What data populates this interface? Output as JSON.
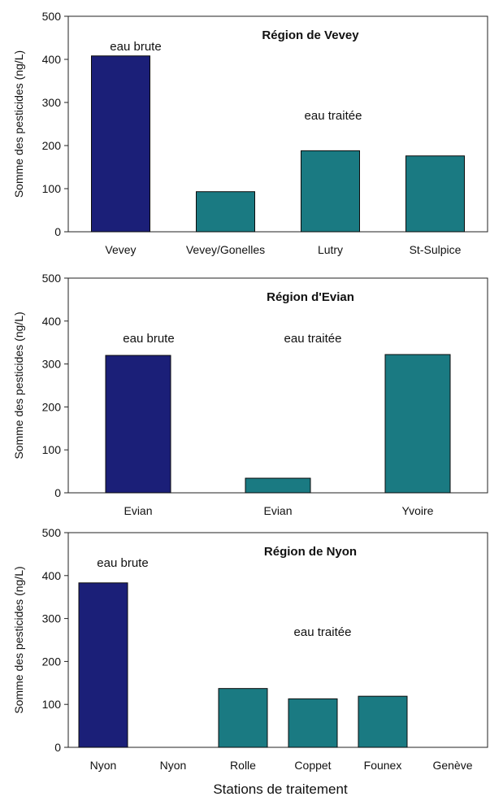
{
  "colors": {
    "raw_water": "#1b1f78",
    "treated_water": "#1a7a82",
    "axis": "#222222"
  },
  "xlabel": "Stations de traitement",
  "chart_data": [
    {
      "type": "bar",
      "title": "Région de Vevey",
      "ylabel": "Somme des pesticides (ng/L)",
      "ylim": [
        0,
        500
      ],
      "yticks": [
        0,
        100,
        200,
        300,
        400,
        500
      ],
      "categories": [
        "Vevey",
        "Vevey/Gonelles",
        "Lutry",
        "St-Sulpice"
      ],
      "values": [
        408,
        93,
        188,
        176
      ],
      "water_type": [
        "eau brute",
        "eau traitée",
        "eau traitée",
        "eau traitée"
      ],
      "annotations": [
        "eau brute",
        "eau traitée"
      ]
    },
    {
      "type": "bar",
      "title": "Région d'Evian",
      "ylabel": "Somme des pesticides (ng/L)",
      "ylim": [
        0,
        500
      ],
      "yticks": [
        0,
        100,
        200,
        300,
        400,
        500
      ],
      "categories": [
        "Evian",
        "Evian",
        "Yvoire"
      ],
      "values": [
        320,
        34,
        322
      ],
      "water_type": [
        "eau brute",
        "eau traitée",
        "eau traitée"
      ],
      "annotations": [
        "eau brute",
        "eau traitée"
      ]
    },
    {
      "type": "bar",
      "title": "Région de Nyon",
      "ylabel": "Somme des pesticides (ng/L)",
      "ylim": [
        0,
        500
      ],
      "yticks": [
        0,
        100,
        200,
        300,
        400,
        500
      ],
      "categories": [
        "Nyon",
        "Nyon",
        "Rolle",
        "Coppet",
        "Founex",
        "Genève"
      ],
      "values": [
        383,
        0,
        137,
        113,
        119,
        0
      ],
      "water_type": [
        "eau brute",
        "eau traitée",
        "eau traitée",
        "eau traitée",
        "eau traitée",
        "eau traitée"
      ],
      "annotations": [
        "eau brute",
        "eau traitée"
      ]
    }
  ]
}
